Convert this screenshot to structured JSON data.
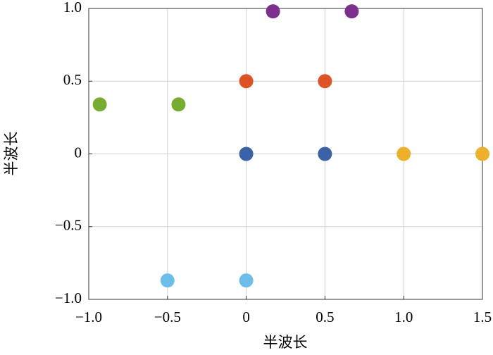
{
  "chart_data": {
    "type": "scatter",
    "xlabel": "半波长",
    "ylabel": "半波长",
    "xlim": [
      -1.0,
      1.5
    ],
    "ylim": [
      -1.0,
      1.0
    ],
    "xticks": [
      {
        "value": -1.0,
        "label": "−1.0"
      },
      {
        "value": -0.5,
        "label": "−0.5"
      },
      0,
      0.5,
      {
        "value": 1.0,
        "label": "1.0"
      },
      1.5
    ],
    "yticks": [
      {
        "value": -1.0,
        "label": "−1.0"
      },
      {
        "value": -0.5,
        "label": "−0.5"
      },
      0,
      0.5,
      {
        "value": 1.0,
        "label": "1.0"
      }
    ],
    "grid": true,
    "series": [
      {
        "color": "#3b61a6",
        "x": [
          0,
          0.5
        ],
        "y": [
          0,
          0
        ]
      },
      {
        "color": "#dc5326",
        "x": [
          0,
          0.5
        ],
        "y": [
          0.5,
          0.5
        ]
      },
      {
        "color": "#eeb02b",
        "x": [
          1.0,
          1.5
        ],
        "y": [
          0,
          0
        ]
      },
      {
        "color": "#7e2f8e",
        "x": [
          0.17,
          0.67
        ],
        "y": [
          0.98,
          0.98
        ]
      },
      {
        "color": "#77ac30",
        "x": [
          -0.93,
          -0.43
        ],
        "y": [
          0.34,
          0.34
        ]
      },
      {
        "color": "#6dbde9",
        "x": [
          -0.5,
          0
        ],
        "y": [
          -0.87,
          -0.87
        ]
      }
    ]
  }
}
